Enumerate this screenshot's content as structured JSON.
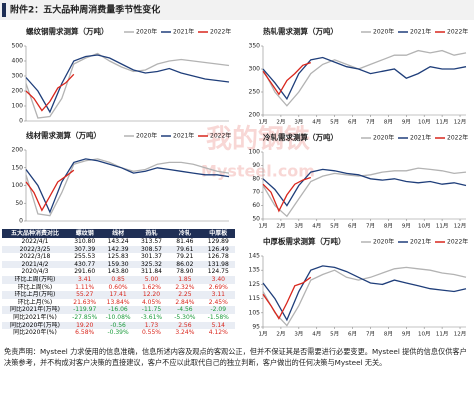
{
  "header": {
    "title": "附件2：五大品种周消费量季节性变化"
  },
  "chart_data": [
    {
      "type": "line",
      "title": "螺纹钢需求测算（万吨）",
      "xlim": [
        1,
        52
      ],
      "ylim": [
        0,
        500
      ],
      "yticks": [
        0,
        100,
        200,
        300,
        400,
        500
      ],
      "series": [
        {
          "name": "2020年",
          "color": "#b3b3b3",
          "x": [
            1,
            4,
            7,
            10,
            13,
            16,
            19,
            22,
            25,
            28,
            31,
            34,
            37,
            40,
            43,
            46,
            49,
            52
          ],
          "values": [
            250,
            20,
            30,
            150,
            380,
            420,
            450,
            400,
            360,
            330,
            340,
            380,
            400,
            410,
            400,
            390,
            380,
            370
          ]
        },
        {
          "name": "2021年",
          "color": "#1f3e7a",
          "x": [
            1,
            4,
            7,
            10,
            13,
            16,
            19,
            22,
            25,
            28,
            31,
            34,
            37,
            40,
            43,
            46,
            49,
            52
          ],
          "values": [
            290,
            200,
            60,
            250,
            400,
            430,
            440,
            420,
            380,
            340,
            320,
            330,
            350,
            320,
            300,
            280,
            270,
            260
          ]
        },
        {
          "name": "2022年",
          "color": "#d9261c",
          "x": [
            1,
            3,
            5,
            7,
            9,
            11,
            13
          ],
          "values": [
            200,
            150,
            70,
            130,
            220,
            255,
            311
          ]
        }
      ]
    },
    {
      "type": "line",
      "title": "线材需求测算（万吨）",
      "xlim": [
        1,
        52
      ],
      "ylim": [
        0,
        200
      ],
      "yticks": [
        0,
        50,
        100,
        150,
        200
      ],
      "series": [
        {
          "name": "2020年",
          "color": "#b3b3b3",
          "x": [
            1,
            4,
            7,
            10,
            13,
            16,
            19,
            22,
            25,
            28,
            31,
            34,
            37,
            40,
            43,
            46,
            49,
            52
          ],
          "values": [
            130,
            20,
            15,
            80,
            160,
            170,
            175,
            165,
            150,
            140,
            145,
            160,
            165,
            165,
            160,
            150,
            140,
            135
          ]
        },
        {
          "name": "2021年",
          "color": "#1f3e7a",
          "x": [
            1,
            4,
            7,
            10,
            13,
            16,
            19,
            22,
            25,
            28,
            31,
            34,
            37,
            40,
            43,
            46,
            49,
            52
          ],
          "values": [
            145,
            100,
            25,
            110,
            165,
            175,
            170,
            160,
            150,
            135,
            140,
            150,
            145,
            140,
            135,
            130,
            130,
            125
          ]
        },
        {
          "name": "2022年",
          "color": "#d9261c",
          "x": [
            1,
            3,
            5,
            7,
            9,
            11,
            13
          ],
          "values": [
            110,
            80,
            30,
            70,
            110,
            126,
            143
          ]
        }
      ]
    },
    {
      "type": "line",
      "title": "热轧需求测算（万吨）",
      "xlim": [
        1,
        52
      ],
      "ylim": [
        200,
        350
      ],
      "yticks": [
        200,
        250,
        300,
        350
      ],
      "xticks": [
        {
          "value": 1,
          "label": "1月"
        },
        {
          "value": 5.5,
          "label": "2月"
        },
        {
          "value": 10,
          "label": "3月"
        },
        {
          "value": 14.5,
          "label": "4月"
        },
        {
          "value": 19,
          "label": "5月"
        },
        {
          "value": 23.5,
          "label": "6月"
        },
        {
          "value": 28,
          "label": "7月"
        },
        {
          "value": 32.5,
          "label": "8月"
        },
        {
          "value": 37,
          "label": "9月"
        },
        {
          "value": 41.5,
          "label": "10月"
        },
        {
          "value": 46,
          "label": "11月"
        },
        {
          "value": 50.5,
          "label": "12月"
        }
      ],
      "series": [
        {
          "name": "2020年",
          "color": "#b3b3b3",
          "x": [
            1,
            4,
            7,
            10,
            13,
            16,
            19,
            22,
            25,
            28,
            31,
            34,
            37,
            40,
            43,
            46,
            49,
            52
          ],
          "values": [
            300,
            250,
            220,
            250,
            290,
            310,
            320,
            310,
            300,
            310,
            320,
            330,
            330,
            340,
            335,
            340,
            330,
            335
          ]
        },
        {
          "name": "2021年",
          "color": "#1f3e7a",
          "x": [
            1,
            4,
            7,
            10,
            13,
            16,
            19,
            22,
            25,
            28,
            31,
            34,
            37,
            40,
            43,
            46,
            49,
            52
          ],
          "values": [
            300,
            270,
            235,
            290,
            320,
            325,
            315,
            305,
            300,
            290,
            295,
            300,
            280,
            290,
            305,
            300,
            300,
            305
          ]
        },
        {
          "name": "2022年",
          "color": "#d9261c",
          "x": [
            1,
            3,
            5,
            7,
            9,
            11,
            13
          ],
          "values": [
            295,
            270,
            245,
            275,
            290,
            308,
            314
          ]
        }
      ]
    },
    {
      "type": "line",
      "title": "冷轧需求测算（万吨）",
      "xlim": [
        1,
        52
      ],
      "ylim": [
        50,
        100
      ],
      "yticks": [
        50,
        60,
        70,
        80,
        90,
        100
      ],
      "xticks": [
        {
          "value": 1,
          "label": "1月"
        },
        {
          "value": 5.5,
          "label": "2月"
        },
        {
          "value": 10,
          "label": "3月"
        },
        {
          "value": 14.5,
          "label": "4月"
        },
        {
          "value": 19,
          "label": "5月"
        },
        {
          "value": 23.5,
          "label": "6月"
        },
        {
          "value": 28,
          "label": "7月"
        },
        {
          "value": 32.5,
          "label": "8月"
        },
        {
          "value": 37,
          "label": "9月"
        },
        {
          "value": 41.5,
          "label": "10月"
        },
        {
          "value": 46,
          "label": "11月"
        },
        {
          "value": 50.5,
          "label": "12月"
        }
      ],
      "series": [
        {
          "name": "2020年",
          "color": "#b3b3b3",
          "x": [
            1,
            4,
            7,
            10,
            13,
            16,
            19,
            22,
            25,
            28,
            31,
            34,
            37,
            40,
            43,
            46,
            49,
            52
          ],
          "values": [
            75,
            60,
            52,
            65,
            78,
            82,
            84,
            83,
            82,
            83,
            85,
            86,
            86,
            88,
            87,
            86,
            84,
            85
          ]
        },
        {
          "name": "2021年",
          "color": "#1f3e7a",
          "x": [
            1,
            4,
            7,
            10,
            13,
            16,
            19,
            22,
            25,
            28,
            31,
            34,
            37,
            40,
            43,
            46,
            49,
            52
          ],
          "values": [
            80,
            72,
            60,
            75,
            85,
            87,
            86,
            84,
            83,
            80,
            79,
            80,
            78,
            77,
            78,
            76,
            77,
            75
          ]
        },
        {
          "name": "2022年",
          "color": "#d9261c",
          "x": [
            1,
            3,
            5,
            7,
            9,
            11,
            13
          ],
          "values": [
            76,
            70,
            56,
            68,
            76,
            79,
            81
          ]
        }
      ]
    },
    {
      "type": "line",
      "title": "中厚板需求测算（万吨）",
      "xlim": [
        1,
        52
      ],
      "ylim": [
        95,
        145
      ],
      "yticks": [
        95,
        105,
        115,
        125,
        135,
        145
      ],
      "xticks": [
        {
          "value": 1,
          "label": "1月"
        },
        {
          "value": 5.5,
          "label": "2月"
        },
        {
          "value": 10,
          "label": "3月"
        },
        {
          "value": 14.5,
          "label": "4月"
        },
        {
          "value": 19,
          "label": "5月"
        },
        {
          "value": 23.5,
          "label": "6月"
        },
        {
          "value": 28,
          "label": "7月"
        },
        {
          "value": 32.5,
          "label": "8月"
        },
        {
          "value": 37,
          "label": "9月"
        },
        {
          "value": 41.5,
          "label": "10月"
        },
        {
          "value": 46,
          "label": "11月"
        },
        {
          "value": 50.5,
          "label": "12月"
        }
      ],
      "series": [
        {
          "name": "2020年",
          "color": "#b3b3b3",
          "x": [
            1,
            4,
            7,
            10,
            13,
            16,
            19,
            22,
            25,
            28,
            31,
            34,
            37,
            40,
            43,
            46,
            49,
            52
          ],
          "values": [
            120,
            105,
            96,
            110,
            128,
            132,
            135,
            130,
            128,
            130,
            133,
            136,
            137,
            136,
            135,
            133,
            132,
            130
          ]
        },
        {
          "name": "2021年",
          "color": "#1f3e7a",
          "x": [
            1,
            4,
            7,
            10,
            13,
            16,
            19,
            22,
            25,
            28,
            31,
            34,
            37,
            40,
            43,
            46,
            49,
            52
          ],
          "values": [
            126,
            115,
            100,
            120,
            135,
            138,
            137,
            134,
            130,
            126,
            125,
            128,
            126,
            124,
            122,
            121,
            120,
            122
          ]
        },
        {
          "name": "2022年",
          "color": "#d9261c",
          "x": [
            1,
            3,
            5,
            7,
            9,
            11,
            13
          ],
          "values": [
            118,
            110,
            101,
            112,
            124,
            126,
            130
          ]
        }
      ]
    }
  ],
  "table": {
    "columns": [
      "五大品种消费对比",
      "螺纹钢",
      "线材",
      "热轧",
      "冷轧",
      "中厚板"
    ],
    "rows": [
      [
        "2022/4/1",
        "310.80",
        "143.24",
        "313.57",
        "81.46",
        "129.89"
      ],
      [
        "2022/3/25",
        "307.39",
        "142.39",
        "308.57",
        "79.61",
        "126.49"
      ],
      [
        "2022/3/18",
        "255.53",
        "125.83",
        "301.37",
        "79.21",
        "126.78"
      ],
      [
        "2021/4/2",
        "430.77",
        "159.30",
        "325.32",
        "86.02",
        "131.98"
      ],
      [
        "2020/4/3",
        "291.60",
        "143.80",
        "311.84",
        "78.90",
        "124.75"
      ],
      [
        "环比上周(万吨)",
        "3.41",
        "0.85",
        "5.00",
        "1.85",
        "3.40"
      ],
      [
        "环比上周(%)",
        "1.11%",
        "0.60%",
        "1.62%",
        "2.32%",
        "2.69%"
      ],
      [
        "环比上月(万吨)",
        "55.27",
        "17.41",
        "12.20",
        "2.25",
        "3.11"
      ],
      [
        "环比上月(%)",
        "21.63%",
        "13.84%",
        "4.05%",
        "2.84%",
        "2.45%"
      ],
      [
        "同比2021年(万吨)",
        "-119.97",
        "-16.06",
        "-11.75",
        "-4.56",
        "-2.09"
      ],
      [
        "同比2021年(%)",
        "-27.85%",
        "-10.08%",
        "-3.61%",
        "-5.30%",
        "-1.58%"
      ],
      [
        "同比2020年(万吨)",
        "19.20",
        "-0.56",
        "1.73",
        "2.56",
        "5.14"
      ],
      [
        "同比2020年(%)",
        "6.58%",
        "-0.39%",
        "0.55%",
        "3.24%",
        "4.12%"
      ]
    ]
  },
  "watermark": {
    "logo": "我的钢铁",
    "site": "Mysteel.com"
  },
  "disclaimer": "免责声明：Mysteel 力求使用的信息准确，信息所述内容及观点的客观公正，但并不保证其是否需要进行必要变更。Mysteel 提供的信息仅供客户决策参考，并不构成对客户决策的直接建议，客户不应以此取代自己的独立判断，客户做出的任何决策与Mysteel 无关。"
}
